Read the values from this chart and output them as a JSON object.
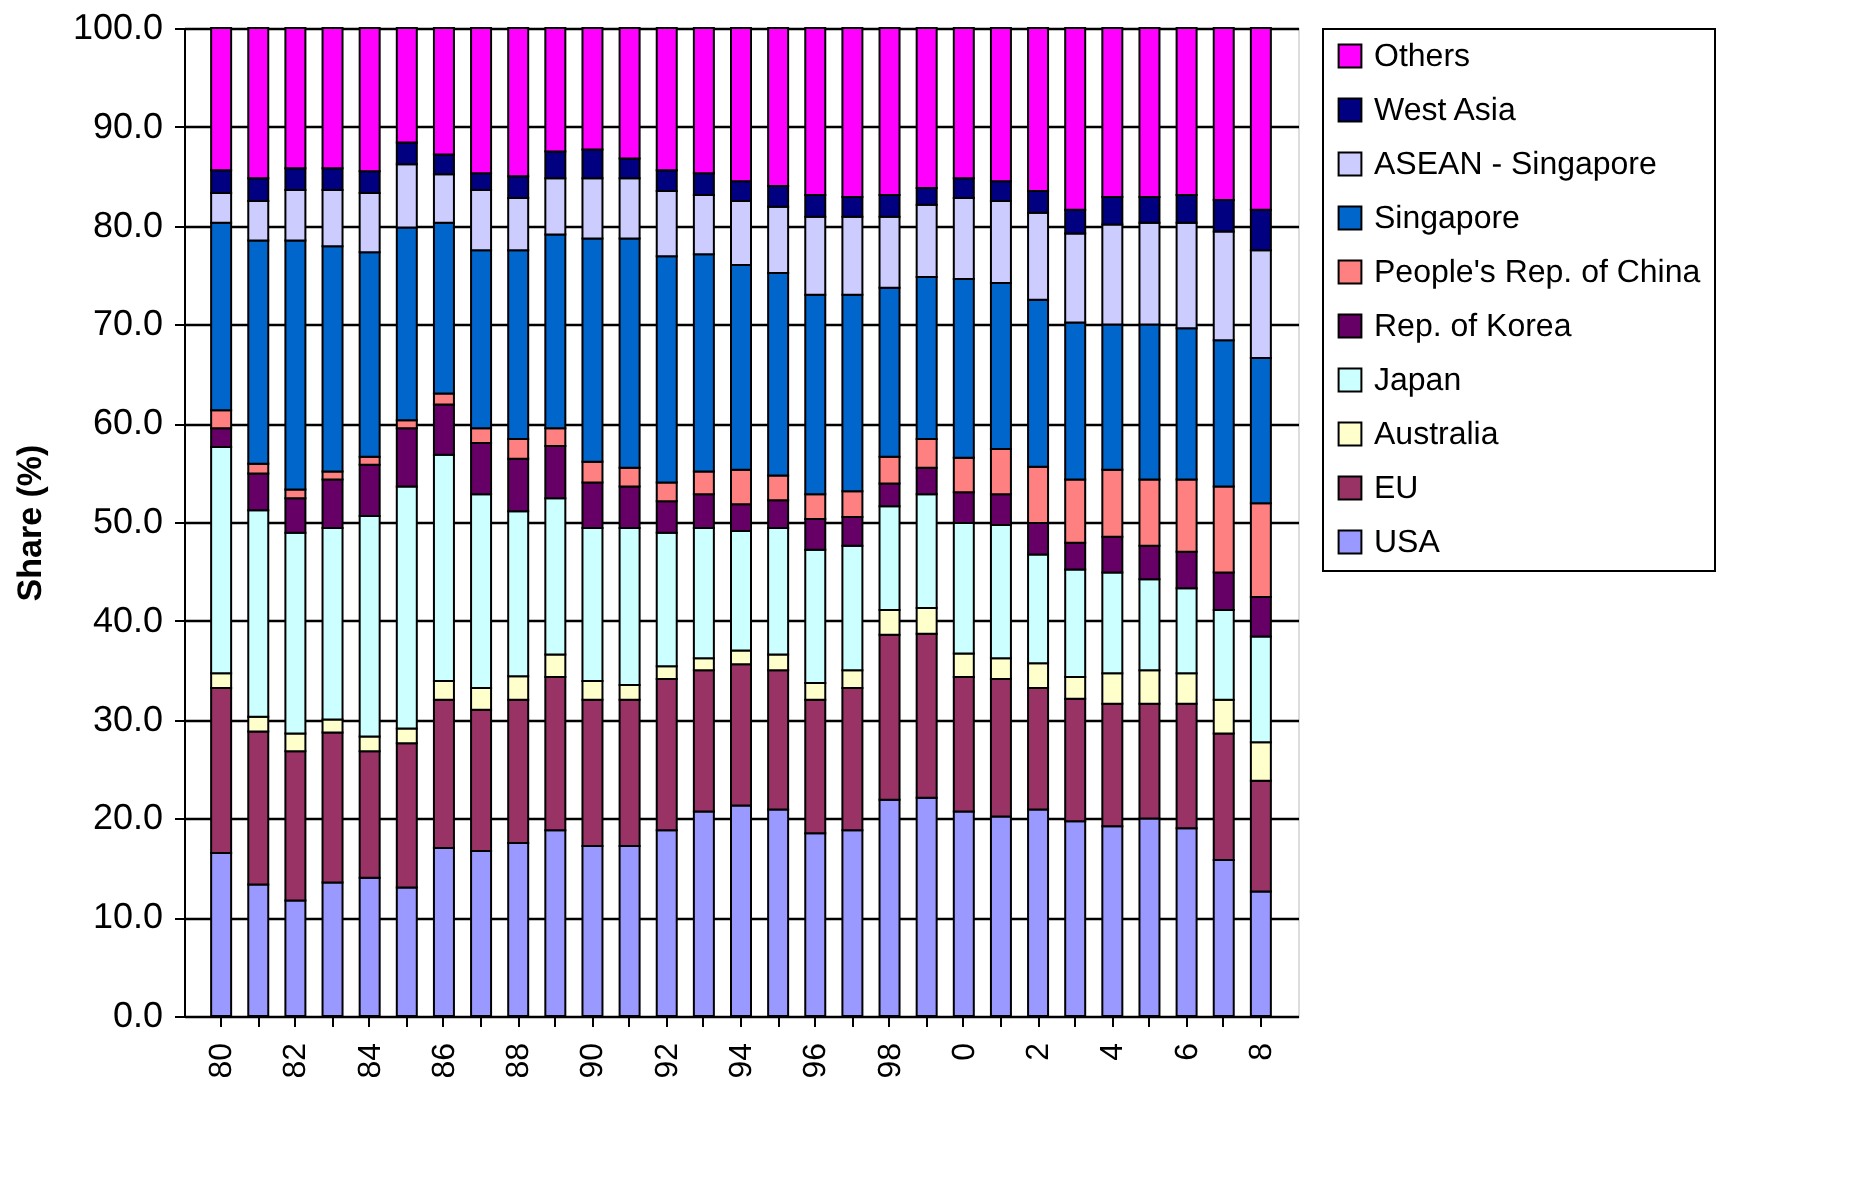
{
  "chart_data": {
    "type": "bar",
    "stacked": true,
    "ylabel": "Share (%)",
    "categories": [
      "80",
      null,
      "82",
      null,
      "84",
      null,
      "86",
      null,
      "88",
      null,
      "90",
      null,
      "92",
      null,
      "94",
      null,
      "96",
      null,
      "98",
      null,
      "0",
      null,
      "2",
      null,
      "4",
      null,
      "6",
      null,
      "8"
    ],
    "ylim": [
      0,
      100
    ],
    "yticks": [
      {
        "value": 0,
        "label": "0.0"
      },
      {
        "value": 10,
        "label": "10.0"
      },
      {
        "value": 20,
        "label": "20.0"
      },
      {
        "value": 30,
        "label": "30.0"
      },
      {
        "value": 40,
        "label": "40.0"
      },
      {
        "value": 50,
        "label": "50.0"
      },
      {
        "value": 60,
        "label": "60.0"
      },
      {
        "value": 70,
        "label": "70.0"
      },
      {
        "value": 80,
        "label": "80.0"
      },
      {
        "value": 90,
        "label": "90.0"
      },
      {
        "value": 100,
        "label": "100.0"
      }
    ],
    "grid": "y",
    "legend": "right",
    "series": [
      {
        "name": "USA",
        "color": "#9999ff",
        "values": [
          16.5,
          13.3,
          11.7,
          13.5,
          14.0,
          13.0,
          17.0,
          16.7,
          17.5,
          18.8,
          17.2,
          17.2,
          18.8,
          20.7,
          21.3,
          20.9,
          18.5,
          18.8,
          21.9,
          22.1,
          20.7,
          20.2,
          20.9,
          19.7,
          19.2,
          20.0,
          19.0,
          15.8,
          12.6
        ]
      },
      {
        "name": "EU",
        "color": "#993366",
        "values": [
          16.7,
          15.5,
          15.1,
          15.2,
          12.8,
          14.6,
          15.0,
          14.3,
          14.5,
          15.5,
          14.8,
          14.8,
          15.3,
          14.3,
          14.3,
          14.1,
          13.5,
          14.4,
          16.7,
          16.6,
          13.6,
          13.9,
          12.3,
          12.4,
          12.4,
          11.6,
          12.6,
          12.8,
          11.2
        ]
      },
      {
        "name": "Australia",
        "color": "#ffffcc",
        "values": [
          1.5,
          1.5,
          1.8,
          1.3,
          1.5,
          1.5,
          1.9,
          2.2,
          2.4,
          2.3,
          1.9,
          1.5,
          1.3,
          1.2,
          1.4,
          1.6,
          1.7,
          1.8,
          2.5,
          2.6,
          2.4,
          2.1,
          2.5,
          2.2,
          3.1,
          3.4,
          3.1,
          3.4,
          3.9
        ]
      },
      {
        "name": "Japan",
        "color": "#ccffff",
        "values": [
          22.9,
          20.9,
          20.3,
          19.4,
          22.3,
          24.5,
          22.9,
          19.6,
          16.7,
          15.8,
          15.5,
          15.9,
          13.5,
          13.2,
          12.1,
          12.8,
          13.5,
          12.6,
          10.5,
          11.5,
          13.2,
          13.5,
          11.0,
          10.9,
          10.2,
          9.2,
          8.6,
          9.1,
          10.7
        ]
      },
      {
        "name": "Rep. of Korea",
        "color": "#660066",
        "values": [
          1.9,
          3.7,
          3.5,
          4.9,
          5.2,
          5.9,
          5.1,
          5.2,
          5.3,
          5.3,
          4.6,
          4.2,
          3.2,
          3.4,
          2.7,
          2.8,
          3.1,
          2.9,
          2.3,
          2.7,
          3.1,
          3.1,
          3.2,
          2.7,
          3.6,
          3.4,
          3.7,
          3.8,
          4.0
        ]
      },
      {
        "name": "People's Rep. of China",
        "color": "#ff8080",
        "values": [
          1.8,
          1.0,
          0.9,
          0.8,
          0.8,
          0.8,
          1.1,
          1.5,
          2.0,
          1.8,
          2.1,
          1.9,
          1.9,
          2.3,
          3.5,
          2.5,
          2.5,
          2.6,
          2.7,
          2.9,
          3.5,
          4.6,
          5.7,
          6.4,
          6.8,
          6.7,
          7.3,
          8.7,
          9.5
        ]
      },
      {
        "name": "Singapore",
        "color": "#0066cc",
        "values": [
          19.0,
          22.6,
          25.2,
          22.8,
          20.7,
          19.5,
          17.3,
          18.0,
          19.1,
          19.6,
          22.6,
          23.2,
          22.9,
          22.0,
          20.7,
          20.5,
          20.2,
          19.9,
          17.1,
          16.4,
          18.1,
          16.8,
          16.9,
          15.9,
          14.7,
          15.7,
          15.3,
          14.8,
          14.7
        ]
      },
      {
        "name": "ASEAN - Singapore",
        "color": "#ccccff",
        "values": [
          3.0,
          4.0,
          5.1,
          5.7,
          6.0,
          6.4,
          4.9,
          6.1,
          5.3,
          5.7,
          6.1,
          6.1,
          6.6,
          6.0,
          6.5,
          6.7,
          7.9,
          7.9,
          7.2,
          7.3,
          8.2,
          8.3,
          8.8,
          9.0,
          10.1,
          10.3,
          10.7,
          11.0,
          10.9
        ]
      },
      {
        "name": "West Asia",
        "color": "#000080",
        "values": [
          2.3,
          2.3,
          2.2,
          2.2,
          2.2,
          2.2,
          2.0,
          1.7,
          2.2,
          2.7,
          2.9,
          2.0,
          2.1,
          2.2,
          2.0,
          2.1,
          2.2,
          2.0,
          2.2,
          1.7,
          2.0,
          2.0,
          2.2,
          2.4,
          2.8,
          2.6,
          2.8,
          3.2,
          4.1
        ]
      },
      {
        "name": "Others",
        "color": "#ff00ff",
        "values": [
          14.4,
          15.2,
          14.2,
          14.2,
          14.5,
          11.6,
          12.8,
          14.7,
          15.0,
          12.5,
          12.3,
          13.2,
          14.4,
          14.7,
          15.5,
          16.0,
          16.9,
          17.1,
          16.9,
          16.2,
          15.2,
          15.5,
          16.5,
          18.4,
          17.1,
          17.1,
          16.9,
          17.4,
          18.4
        ]
      }
    ]
  }
}
